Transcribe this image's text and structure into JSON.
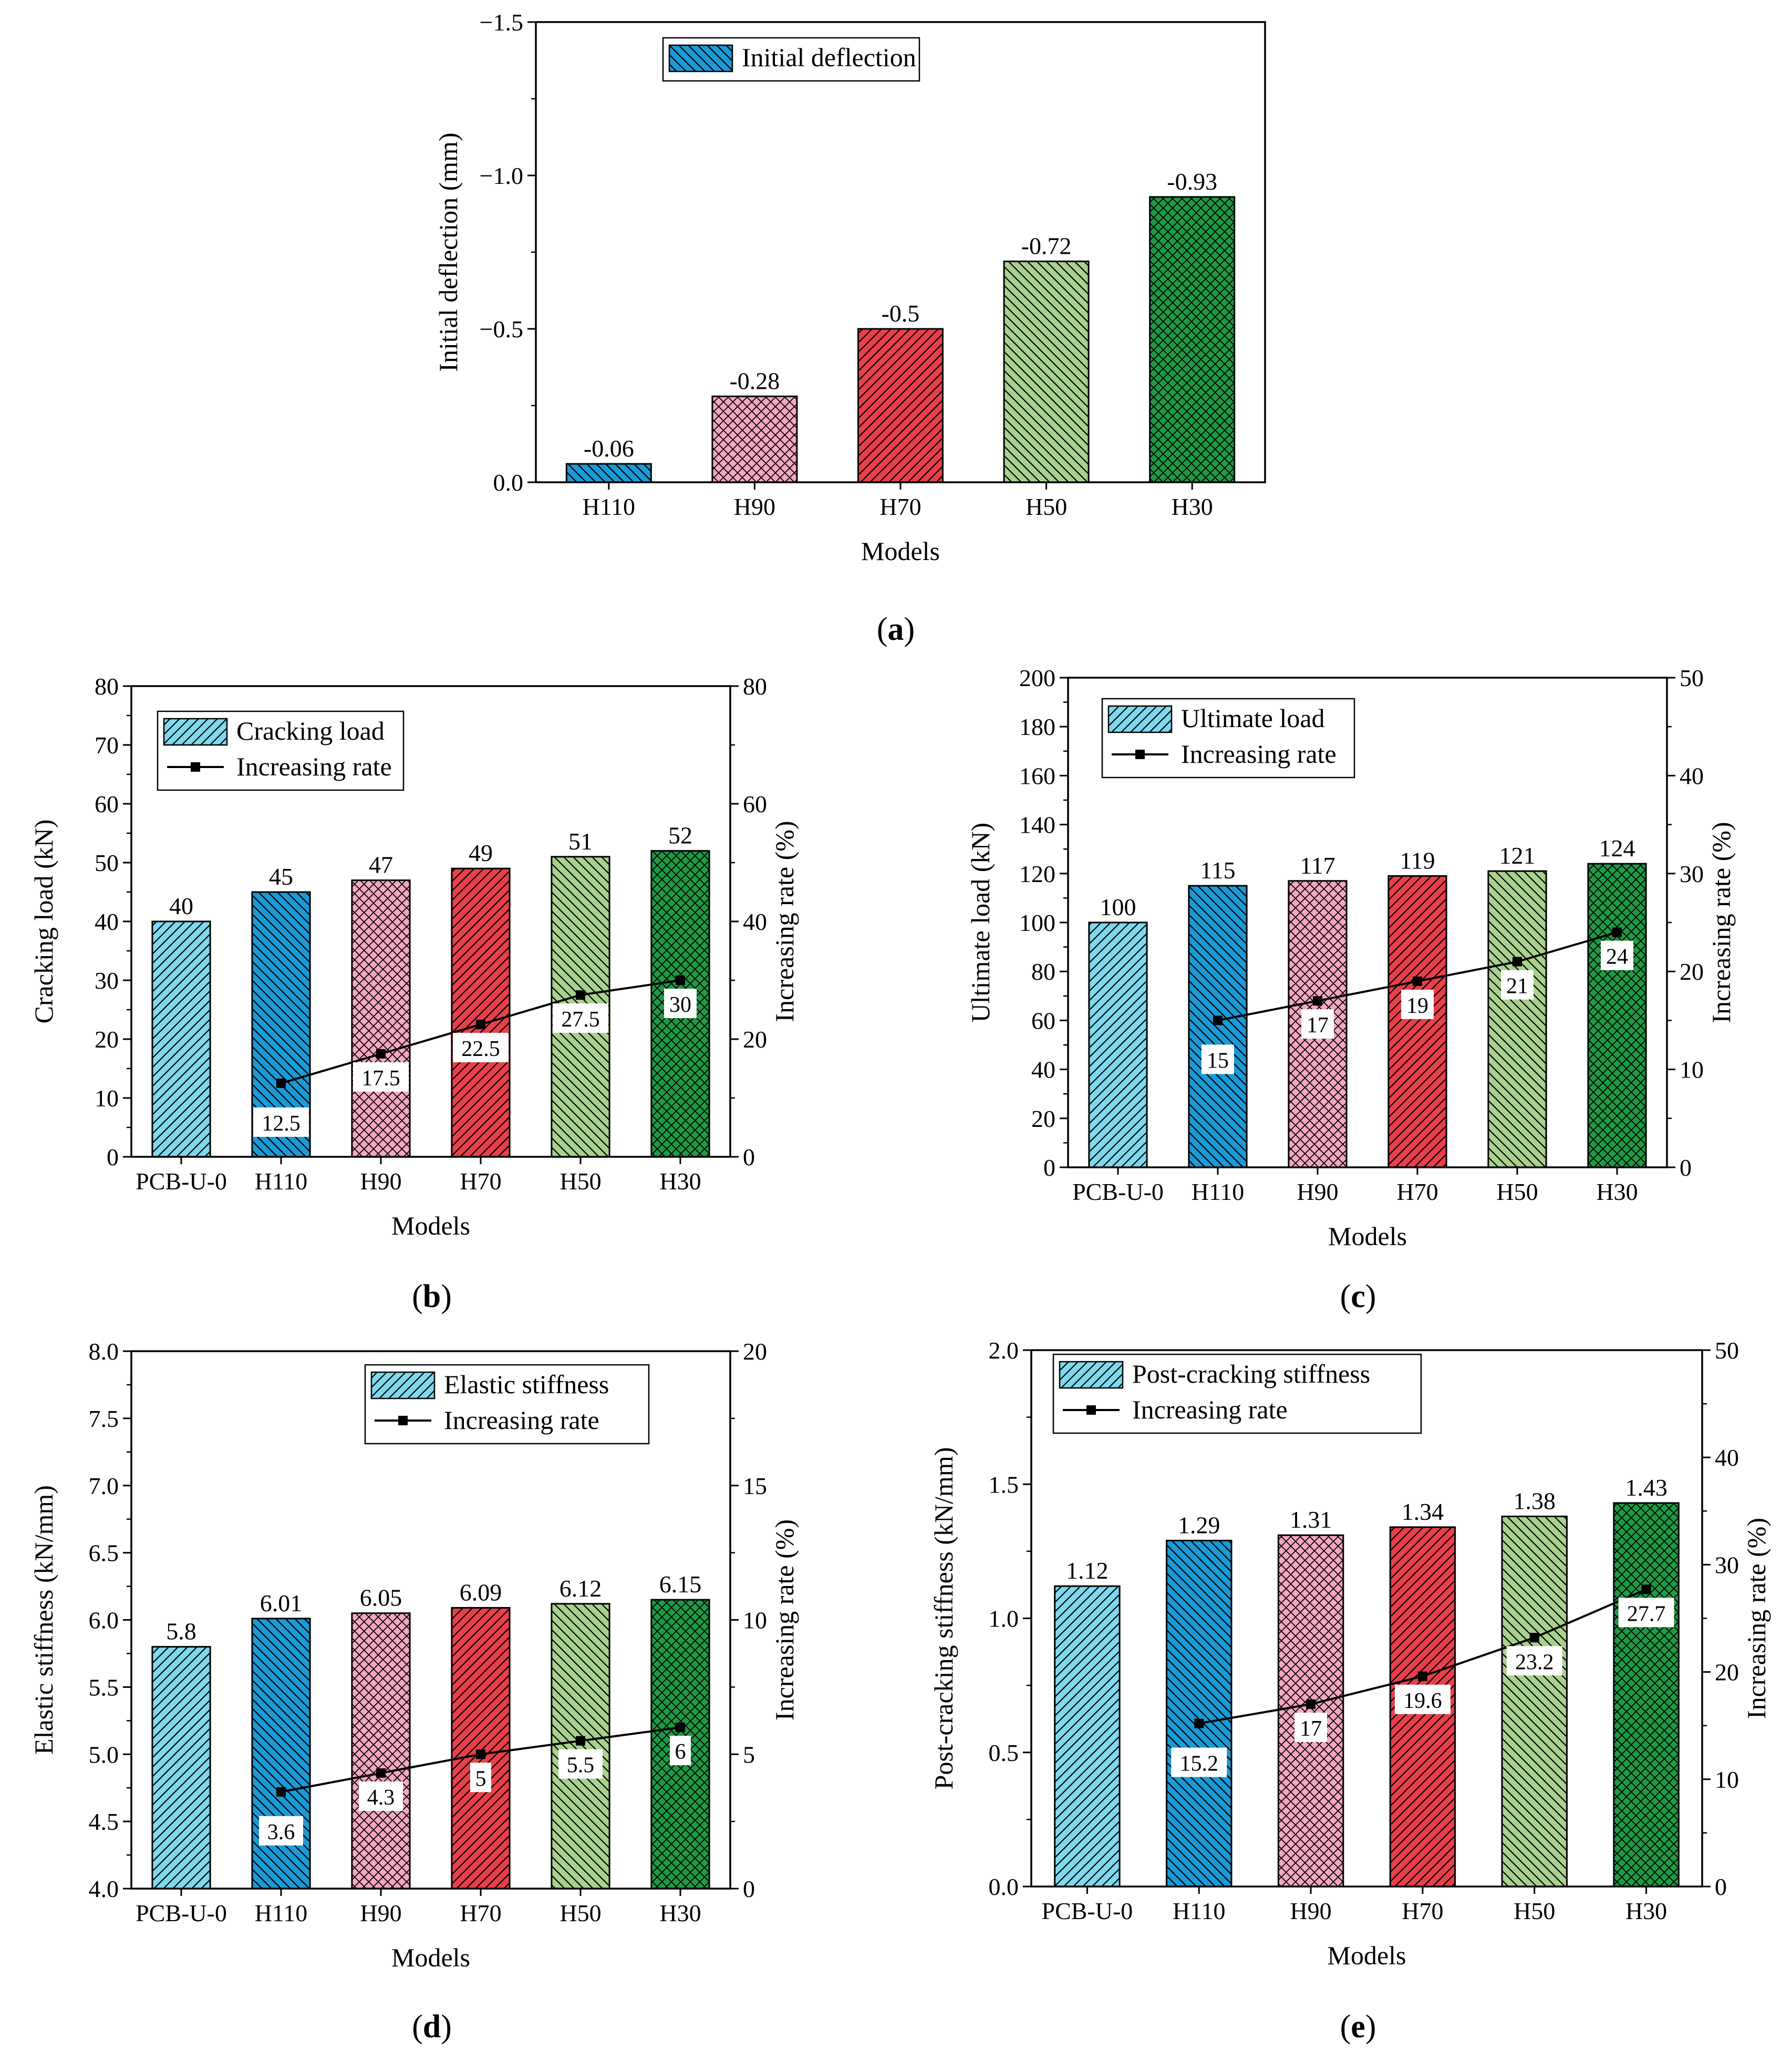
{
  "chart_data": [
    {
      "id": "a",
      "type": "bar",
      "panel_label": "a",
      "xlabel": "Models",
      "ylabel": "Initial deflection (mm)",
      "categories": [
        "H110",
        "H90",
        "H70",
        "H50",
        "H30"
      ],
      "series": [
        {
          "name": "Initial deflection",
          "values": [
            -0.06,
            -0.28,
            -0.5,
            -0.72,
            -0.93
          ]
        }
      ],
      "value_labels": [
        "-0.06",
        "-0.28",
        "-0.5",
        "-0.72",
        "-0.93"
      ],
      "ylim": [
        0.0,
        -1.5
      ],
      "yticks": [
        0.0,
        -0.5,
        -1.0,
        -1.5
      ],
      "ytick_labels": [
        "0.0",
        "−0.5",
        "−1.0",
        "−1.5"
      ],
      "legend": [
        "Initial deflection"
      ],
      "legend_position": "top-left"
    },
    {
      "id": "b",
      "type": "bar",
      "panel_label": "b",
      "xlabel": "Models",
      "ylabel": "Cracking load (kN)",
      "y2label": "Increasing rate (%)",
      "categories": [
        "PCB-U-0",
        "H110",
        "H90",
        "H70",
        "H50",
        "H30"
      ],
      "series": [
        {
          "name": "Cracking load",
          "axis": "left",
          "values": [
            40,
            45,
            47,
            49,
            51,
            52
          ]
        },
        {
          "name": "Increasing rate",
          "axis": "right",
          "type": "line",
          "values": [
            null,
            12.5,
            17.5,
            22.5,
            27.5,
            30
          ]
        }
      ],
      "value_labels": [
        "40",
        "45",
        "47",
        "49",
        "51",
        "52"
      ],
      "rate_labels": [
        "",
        "12.5",
        "17.5",
        "22.5",
        "27.5",
        "30"
      ],
      "ylim": [
        0,
        80
      ],
      "yticks": [
        0,
        10,
        20,
        30,
        40,
        50,
        60,
        70,
        80
      ],
      "ytick_labels": [
        "0",
        "10",
        "20",
        "30",
        "40",
        "50",
        "60",
        "70",
        "80"
      ],
      "y2lim": [
        0,
        80
      ],
      "y2ticks": [
        0,
        20,
        40,
        60,
        80
      ],
      "y2tick_labels": [
        "0",
        "20",
        "40",
        "60",
        "80"
      ],
      "legend": [
        "Cracking load",
        "Increasing rate"
      ],
      "legend_position": "top-left"
    },
    {
      "id": "c",
      "type": "bar",
      "panel_label": "c",
      "xlabel": "Models",
      "ylabel": "Ultimate load (kN)",
      "y2label": "Increasing rate (%)",
      "categories": [
        "PCB-U-0",
        "H110",
        "H90",
        "H70",
        "H50",
        "H30"
      ],
      "series": [
        {
          "name": "Ultimate load",
          "axis": "left",
          "values": [
            100,
            115,
            117,
            119,
            121,
            124
          ]
        },
        {
          "name": "Increasing rate",
          "axis": "right",
          "type": "line",
          "values": [
            null,
            15,
            17,
            19,
            21,
            24
          ]
        }
      ],
      "value_labels": [
        "100",
        "115",
        "117",
        "119",
        "121",
        "124"
      ],
      "rate_labels": [
        "",
        "15",
        "17",
        "19",
        "21",
        "24"
      ],
      "ylim": [
        0,
        200
      ],
      "yticks": [
        0,
        20,
        40,
        60,
        80,
        100,
        120,
        140,
        160,
        180,
        200
      ],
      "ytick_labels": [
        "0",
        "20",
        "40",
        "60",
        "80",
        "100",
        "120",
        "140",
        "160",
        "180",
        "200"
      ],
      "y2lim": [
        0,
        50
      ],
      "y2ticks": [
        0,
        10,
        20,
        30,
        40,
        50
      ],
      "y2tick_labels": [
        "0",
        "10",
        "20",
        "30",
        "40",
        "50"
      ],
      "legend": [
        "Ultimate load",
        "Increasing rate"
      ],
      "legend_position": "top-left"
    },
    {
      "id": "d",
      "type": "bar",
      "panel_label": "d",
      "xlabel": "Models",
      "ylabel": "Elastic stiffness (kN/mm)",
      "y2label": "Increasing rate (%)",
      "categories": [
        "PCB-U-0",
        "H110",
        "H90",
        "H70",
        "H50",
        "H30"
      ],
      "series": [
        {
          "name": "Elastic stiffness",
          "axis": "left",
          "values": [
            5.8,
            6.01,
            6.05,
            6.09,
            6.12,
            6.15
          ]
        },
        {
          "name": "Increasing rate",
          "axis": "right",
          "type": "line",
          "values": [
            null,
            3.6,
            4.3,
            5,
            5.5,
            6
          ]
        }
      ],
      "value_labels": [
        "5.8",
        "6.01",
        "6.05",
        "6.09",
        "6.12",
        "6.15"
      ],
      "rate_labels": [
        "",
        "3.6",
        "4.3",
        "5",
        "5.5",
        "6"
      ],
      "ylim": [
        4.0,
        8.0
      ],
      "yticks": [
        4.0,
        4.5,
        5.0,
        5.5,
        6.0,
        6.5,
        7.0,
        7.5,
        8.0
      ],
      "ytick_labels": [
        "4.0",
        "4.5",
        "5.0",
        "5.5",
        "6.0",
        "6.5",
        "7.0",
        "7.5",
        "8.0"
      ],
      "y2lim": [
        0,
        20
      ],
      "y2ticks": [
        0,
        5,
        10,
        15,
        20
      ],
      "y2tick_labels": [
        "0",
        "5",
        "10",
        "15",
        "20"
      ],
      "legend": [
        "Elastic stiffness",
        "Increasing rate"
      ],
      "legend_position": "top-right"
    },
    {
      "id": "e",
      "type": "bar",
      "panel_label": "e",
      "xlabel": "Models",
      "ylabel": "Post-cracking stiffness (kN/mm)",
      "y2label": "Increasing rate (%)",
      "categories": [
        "PCB-U-0",
        "H110",
        "H90",
        "H70",
        "H50",
        "H30"
      ],
      "series": [
        {
          "name": "Post-cracking stiffness",
          "axis": "left",
          "values": [
            1.12,
            1.29,
            1.31,
            1.34,
            1.38,
            1.43
          ]
        },
        {
          "name": "Increasing rate",
          "axis": "right",
          "type": "line",
          "values": [
            null,
            15.2,
            17,
            19.6,
            23.2,
            27.7
          ]
        }
      ],
      "value_labels": [
        "1.12",
        "1.29",
        "1.31",
        "1.34",
        "1.38",
        "1.43"
      ],
      "rate_labels": [
        "",
        "15.2",
        "17",
        "19.6",
        "23.2",
        "27.7"
      ],
      "ylim": [
        0.0,
        2.0
      ],
      "yticks": [
        0.0,
        0.5,
        1.0,
        1.5,
        2.0
      ],
      "ytick_labels": [
        "0.0",
        "0.5",
        "1.0",
        "1.5",
        "2.0"
      ],
      "y2lim": [
        0,
        50
      ],
      "y2ticks": [
        0,
        10,
        20,
        30,
        40,
        50
      ],
      "y2tick_labels": [
        "0",
        "10",
        "20",
        "30",
        "40",
        "50"
      ],
      "legend": [
        "Post-cracking stiffness",
        "Increasing rate"
      ],
      "legend_position": "top-left"
    }
  ],
  "category_styles": {
    "PCB-U-0": {
      "color": "#7fd9ee",
      "pattern": "diag-right"
    },
    "H110": {
      "color": "#1a9ad6",
      "pattern": "diag-left"
    },
    "H90": {
      "color": "#f4a7c3",
      "pattern": "cross"
    },
    "H70": {
      "color": "#e8404a",
      "pattern": "diag-right"
    },
    "H50": {
      "color": "#a9d18e",
      "pattern": "diag-left"
    },
    "H30": {
      "color": "#1f9a44",
      "pattern": "cross"
    }
  }
}
